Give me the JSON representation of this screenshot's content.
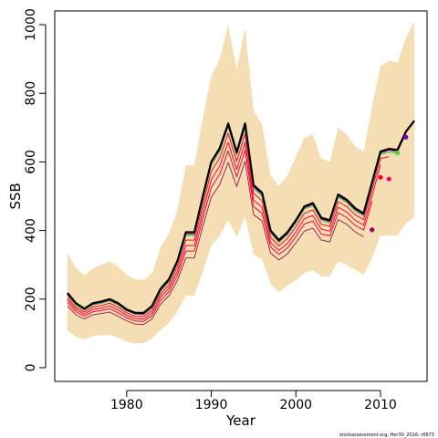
{
  "chart_data": {
    "type": "line",
    "xlabel": "Year",
    "ylabel": "SSB",
    "xlim": [
      1971.5,
      2015.5
    ],
    "ylim": [
      -40,
      1040
    ],
    "x_ticks": [
      1980,
      1990,
      2000,
      2010
    ],
    "y_ticks": [
      0,
      200,
      400,
      600,
      800,
      1000
    ],
    "grid": false,
    "legend": "none",
    "credit": "stockassessment.org, Her30_2016, r6673",
    "colors": {
      "band": "#f5deb3",
      "main_line": "#000000",
      "red_lines": "#ff0033",
      "thin_line": "#8b1a4a",
      "green": "#66cc33",
      "purple": "#7700cc",
      "retro_2011": "#ff0066",
      "retro_2009": "#a0005a"
    },
    "years": [
      1973,
      1974,
      1975,
      1976,
      1977,
      1978,
      1979,
      1980,
      1981,
      1982,
      1983,
      1984,
      1985,
      1986,
      1987,
      1988,
      1989,
      1990,
      1991,
      1992,
      1993,
      1994,
      1995,
      1996,
      1997,
      1998,
      1999,
      2000,
      2001,
      2002,
      2003,
      2004,
      2005,
      2006,
      2007,
      2008,
      2009,
      2010,
      2011,
      2012,
      2013,
      2014
    ],
    "series": [
      {
        "values": [
          218,
          188,
          172,
          188,
          193,
          200,
          188,
          170,
          160,
          160,
          180,
          230,
          258,
          312,
          395,
          395,
          500,
          600,
          640,
          712,
          628,
          712,
          532,
          510,
          400,
          372,
          395,
          430,
          470,
          480,
          437,
          430,
          505,
          490,
          465,
          450,
          540,
          630,
          638,
          635,
          688,
          720
        ]
      },
      {
        "values": [
          212,
          182,
          168,
          183,
          188,
          194,
          183,
          166,
          156,
          155,
          175,
          223,
          250,
          305,
          385,
          385,
          490,
          590,
          630,
          703,
          620,
          700,
          523,
          500,
          392,
          365,
          388,
          422,
          462,
          472,
          430,
          422,
          497,
          482,
          457,
          442,
          530,
          622,
          628,
          625
        ]
      },
      {
        "values": [
          205,
          176,
          162,
          177,
          181,
          188,
          176,
          160,
          150,
          149,
          168,
          215,
          242,
          295,
          372,
          372,
          475,
          572,
          612,
          683,
          602,
          682,
          508,
          487,
          380,
          355,
          377,
          411,
          450,
          460,
          418,
          412,
          484,
          470,
          446,
          432,
          518,
          610,
          615
        ]
      },
      {
        "values": [
          198,
          170,
          156,
          170,
          174,
          180,
          168,
          153,
          143,
          142,
          160,
          206,
          232,
          282,
          356,
          356,
          455,
          548,
          588,
          657,
          578,
          657,
          488,
          468,
          365,
          342,
          362,
          396,
          434,
          444,
          404,
          398,
          468,
          454,
          430,
          416,
          500,
          592
        ]
      },
      {
        "values": [
          190,
          163,
          150,
          163,
          167,
          172,
          160,
          146,
          136,
          135,
          152,
          196,
          222,
          270,
          340,
          340,
          435,
          525,
          564,
          632,
          556,
          634,
          470,
          450,
          352,
          330,
          349,
          382,
          419,
          428,
          390,
          384,
          452,
          438,
          415,
          401,
          484
        ]
      },
      {
        "values": [
          180,
          154,
          142,
          154,
          158,
          162,
          150,
          137,
          127,
          126,
          142,
          185,
          210,
          255,
          320,
          320,
          412,
          497,
          534,
          598,
          528,
          602,
          446,
          428,
          334,
          314,
          332,
          364,
          398,
          407,
          372,
          367,
          432,
          418,
          396,
          382
        ]
      },
      {
        "values": [
          213,
          186,
          170,
          185,
          190,
          197,
          185,
          167,
          157,
          156,
          177,
          226,
          254,
          308,
          390,
          390,
          495,
          596,
          636,
          705,
          624,
          704,
          527,
          505,
          396,
          368,
          391,
          426,
          466,
          476,
          433,
          426,
          501,
          485,
          461,
          446,
          534,
          626,
          634,
          630,
          682
        ]
      }
    ],
    "band": {
      "upper": [
        335,
        290,
        270,
        290,
        300,
        310,
        295,
        270,
        258,
        255,
        275,
        350,
        390,
        460,
        590,
        590,
        730,
        850,
        900,
        1000,
        870,
        990,
        750,
        710,
        560,
        530,
        560,
        615,
        670,
        680,
        610,
        600,
        700,
        680,
        645,
        630,
        760,
        880,
        895,
        890,
        960,
        1010
      ],
      "lower": [
        108,
        90,
        82,
        92,
        95,
        95,
        88,
        75,
        70,
        72,
        85,
        110,
        130,
        165,
        210,
        210,
        280,
        355,
        385,
        430,
        380,
        440,
        330,
        315,
        245,
        220,
        240,
        255,
        275,
        285,
        265,
        265,
        310,
        300,
        285,
        270,
        320,
        385,
        385,
        385,
        420,
        440
      ]
    },
    "points": [
      {
        "x": 2009,
        "y": 402,
        "color": "#a0005a"
      },
      {
        "x": 2010,
        "y": 555,
        "color": "#ff0033"
      },
      {
        "x": 2011,
        "y": 550,
        "color": "#ff0066"
      },
      {
        "x": 2012,
        "y": 626,
        "color": "#66cc33"
      },
      {
        "x": 2013,
        "y": 672,
        "color": "#7700cc"
      }
    ]
  }
}
